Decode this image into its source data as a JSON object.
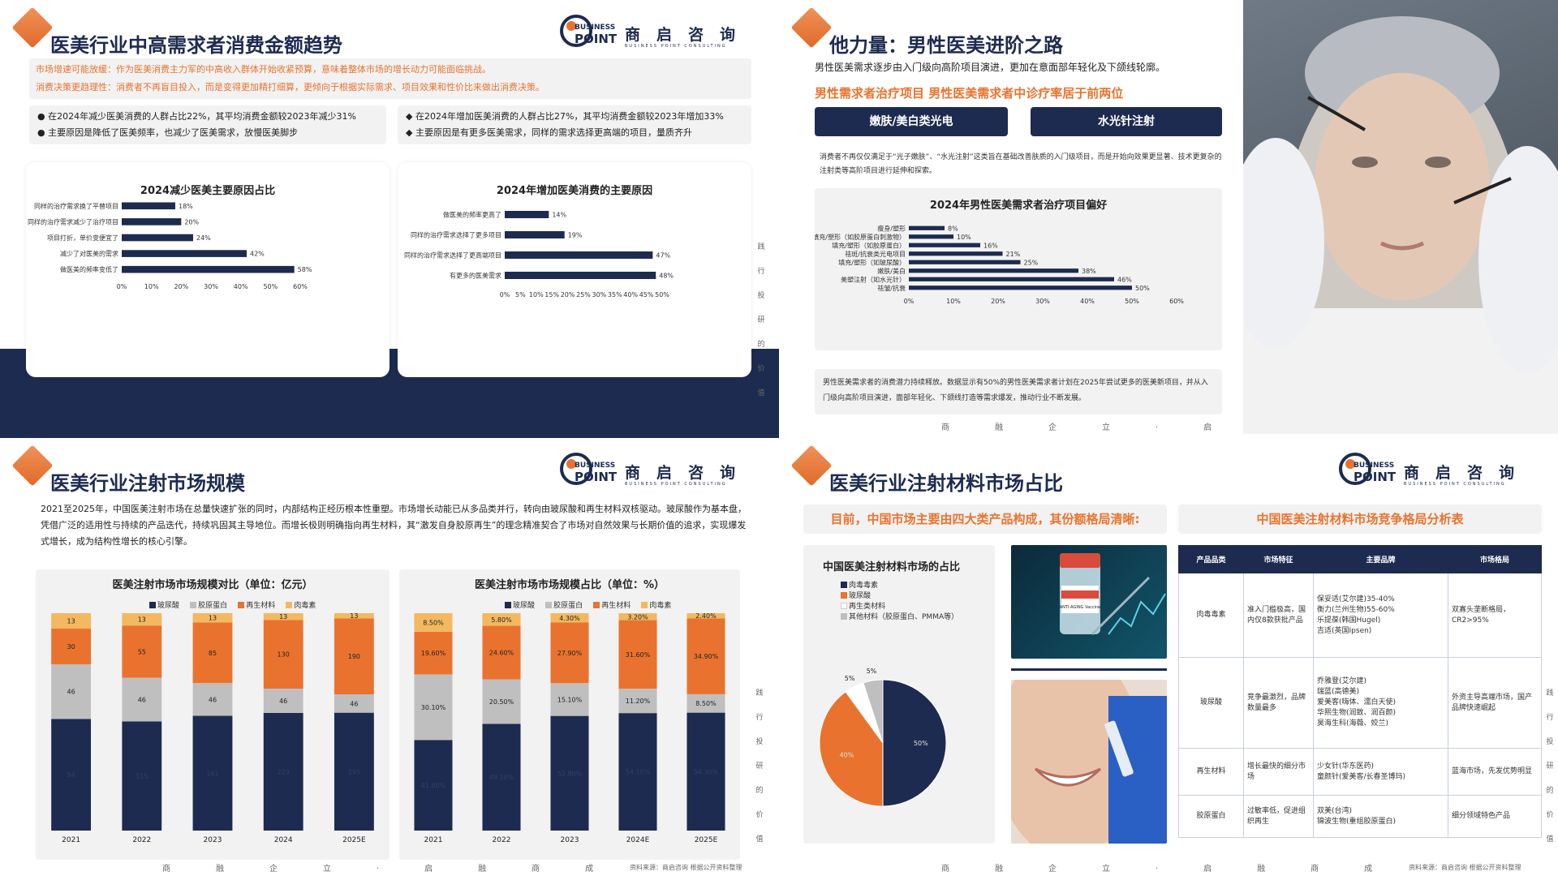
{
  "logo": {
    "en_1": "BUSINESS",
    "en_2": "POINT",
    "cn": "商启咨询",
    "sub": "BUSINESS POINT CONSULTING"
  },
  "footer_chars": "商融企立·启融商成",
  "side_text": [
    "践",
    "行",
    "投",
    "研",
    "的",
    "价",
    "值"
  ],
  "s1": {
    "title": "医美行业中高需求者消费金额趋势",
    "notes": [
      "市场增速可能放缓：作为医美消费主力军的中高收入群体开始收紧预算，意味着整体市场的增长动力可能面临挑战。",
      "消费决策更趋理性：消费者不再盲目投入，而是变得更加精打细算，更倾向于根据实际需求、项目效果和性价比来做出消费决策。"
    ],
    "left_bullets": [
      "在2024年减少医美消费的人群占比22%，其平均消费金额较2023年减少31%",
      "主要原因是降低了医美频率，也减少了医美需求，放慢医美脚步"
    ],
    "right_bullets": [
      "在2024年增加医美消费的人群占比27%，其平均消费金额较2023年增加33%",
      "主要原因是有更多医美需求，同样的需求选择更高端的项目，量质齐升"
    ],
    "bullet_dot": "●",
    "bullet_diamond": "◆"
  },
  "s2": {
    "title": "他力量：男性医美进阶之路",
    "intro": "男性医美需求逐步由入门级向高阶项目演进，更加在意面部年轻化及下颌线轮廓。",
    "highlight": "男性需求者治疗项目 男性医美需求者中诊疗率居于前两位",
    "tags": [
      "嫩肤/美白类光电",
      "水光针注射"
    ],
    "desc": "消费者不再仅仅满足于“光子嫩肤”、“水光注射”这类旨在基础改善肤质的入门级项目，而是开始向效果更显著、技术更复杂的注射类等高阶项目进行延伸和探索。",
    "bottom_note": "男性医美需求者的消费潜力持续释放。数据显示有50%的男性医美需求者计划在2025年尝试更多的医美新项目，并从入门级向高阶项目演进，面部年轻化、下颌线打造等需求爆发，推动行业不断发展。",
    "footer": "商融企立·启"
  },
  "s3": {
    "title": "医美行业注射市场规模",
    "intro": "2021至2025年，中国医美注射市场在总量快速扩张的同时，内部结构正经历根本性重塑。市场增长动能已从多品类并行，转向由玻尿酸和再生材料双核驱动。玻尿酸作为基本盘，凭借广泛的适用性与持续的产品迭代，持续巩固其主导地位。而增长极则明确指向再生材料，其“激发自身胶原再生”的理念精准契合了市场对自然效果与长期价值的追求，实现爆发式增长，成为结构性增长的核心引擎。",
    "source": "资料来源：商启咨询 根据公开资料整理"
  },
  "s4": {
    "title": "医美行业注射材料市场占比",
    "left_head": "目前，中国市场主要由四大类产品构成，其份额格局清晰:",
    "right_head": "中国医美注射材料市场竞争格局分析表",
    "table": {
      "headers": [
        "产品品类",
        "市场特征",
        "主要品牌",
        "市场格局"
      ],
      "rows": [
        [
          "肉毒毒素",
          "准入门槛极高，国内仅8款获批产品",
          "保妥适(艾尔建)35-40%\n衡力(兰州生物)55-60%\n乐提葆(韩国Hugel)\n吉适(英国Ipsen)",
          "双寡头垄断格局，CR2>95%"
        ],
        [
          "玻尿酸",
          "竞争最激烈，品牌数量最多",
          "乔雅登(艾尔建)\n瑞蓝(高德美)\n爱美客(嗨体、濡白天使)\n华熙生物(润致、润百颜)\n昊海生科(海薇、姣兰)",
          "外资主导高端市场，国产品牌快速崛起"
        ],
        [
          "再生材料",
          "增长最快的细分市场",
          "少女针(华东医药)\n童颜针(爱美客/长春圣博玛)",
          "蓝海市场，先发优势明显"
        ],
        [
          "胶原蛋白",
          "过敏率低，促进组织再生",
          "双美(台湾)\n锦波生物(重组胶原蛋白)",
          "细分领域特色产品"
        ]
      ]
    },
    "source": "资料来源：商启咨询 根据公开资料整理",
    "vial_label": "ANTI-AGING Vaccine"
  },
  "chart_data": [
    {
      "id": "reduce",
      "type": "bar",
      "orientation": "horizontal",
      "title": "2024减少医美主要原因占比",
      "categories": [
        "同样的治疗需求换了平替项目",
        "同样的治疗需求减少了治疗项目",
        "项目打折，单价变便宜了",
        "减少了对医美的需求",
        "做医美的频率变低了"
      ],
      "values": [
        18,
        20,
        24,
        42,
        58
      ],
      "value_labels": [
        "18%",
        "20%",
        "24%",
        "42%",
        "58%"
      ],
      "xlim": [
        0,
        60
      ],
      "x_ticks": [
        "0%",
        "10%",
        "20%",
        "30%",
        "40%",
        "50%",
        "60%"
      ],
      "color": "#1d2b50"
    },
    {
      "id": "increase",
      "type": "bar",
      "orientation": "horizontal",
      "title": "2024年增加医美消费的主要原因",
      "categories": [
        "做医美的频率更高了",
        "同样的治疗需求选择了更多项目",
        "同样的治疗需求选择了更高端项目",
        "有更多的医美需求"
      ],
      "values": [
        14,
        19,
        47,
        48
      ],
      "value_labels": [
        "14%",
        "19%",
        "47%",
        "48%"
      ],
      "xlim": [
        0,
        50
      ],
      "x_ticks": [
        "0%",
        "5%",
        "10%",
        "15%",
        "20%",
        "25%",
        "30%",
        "35%",
        "40%",
        "45%",
        "50%"
      ],
      "color": "#1d2b50"
    },
    {
      "id": "male",
      "type": "bar",
      "orientation": "horizontal",
      "title": "2024年男性医美需求者治疗项目偏好",
      "categories": [
        "瘦身/塑形",
        "填充/塑形（如胶原蛋白刺激物）",
        "填充/塑形（如胶原蛋白）",
        "祛斑/抗衰类光电项目",
        "填充/塑形（如玻尿酸）",
        "嫩肤/美白",
        "美塑注射（如水光针）",
        "祛皱/抗衰"
      ],
      "values": [
        8,
        10,
        16,
        21,
        25,
        38,
        46,
        50
      ],
      "value_labels": [
        "8%",
        "10%",
        "16%",
        "21%",
        "25%",
        "38%",
        "46%",
        "50%"
      ],
      "xlim": [
        0,
        60
      ],
      "x_ticks": [
        "0%",
        "10%",
        "20%",
        "30%",
        "40%",
        "50%",
        "60%"
      ],
      "color": "#1d2b50"
    },
    {
      "id": "scale",
      "type": "bar",
      "stacked": true,
      "title": "医美注射市场市场规模对比（单位：亿元）",
      "categories": [
        "2021",
        "2022",
        "2023",
        "2024",
        "2025E"
      ],
      "series": [
        {
          "name": "玻尿酸",
          "values": [
            94,
            115,
            161,
            223,
            295
          ],
          "labels": [
            "94",
            "115",
            "161",
            "223",
            "295"
          ],
          "color": "#1d2b50"
        },
        {
          "name": "胶原蛋白",
          "values": [
            46,
            46,
            46,
            46,
            46
          ],
          "labels": [
            "46",
            "46",
            "46",
            "46",
            "46"
          ],
          "color": "#bfbfbf"
        },
        {
          "name": "再生材料",
          "values": [
            30,
            55,
            85,
            130,
            190
          ],
          "labels": [
            "30",
            "55",
            "85",
            "130",
            "190"
          ],
          "color": "#e9732e"
        },
        {
          "name": "肉毒素",
          "values": [
            13,
            13,
            13,
            13,
            13
          ],
          "labels": [
            "13",
            "13",
            "13",
            "13",
            "13"
          ],
          "color": "#f3b860"
        }
      ]
    },
    {
      "id": "share",
      "type": "bar",
      "stacked": true,
      "title": "医美注射市场市场规模占比（单位：%）",
      "categories": [
        "2021",
        "2022",
        "2023",
        "2024E",
        "2025E"
      ],
      "series": [
        {
          "name": "玻尿酸",
          "values": [
            41.6,
            49.1,
            52.8,
            54.1,
            54.3
          ],
          "labels": [
            "41.60%",
            "49.10%",
            "52.80%",
            "54.10%",
            "54.30%"
          ],
          "color": "#1d2b50"
        },
        {
          "name": "胶原蛋白",
          "values": [
            30.1,
            20.5,
            15.1,
            11.2,
            8.5
          ],
          "labels": [
            "30.10%",
            "20.50%",
            "15.10%",
            "11.20%",
            "8.50%"
          ],
          "color": "#bfbfbf"
        },
        {
          "name": "再生材料",
          "values": [
            19.6,
            24.6,
            27.9,
            31.6,
            34.9
          ],
          "labels": [
            "19.60%",
            "24.60%",
            "27.90%",
            "31.60%",
            "34.90%"
          ],
          "color": "#e9732e"
        },
        {
          "name": "肉毒素",
          "values": [
            8.5,
            5.8,
            4.3,
            3.2,
            2.4
          ],
          "labels": [
            "8.50%",
            "5.80%",
            "4.30%",
            "3.20%",
            "2.40%"
          ],
          "color": "#f3b860"
        }
      ]
    },
    {
      "id": "pie",
      "type": "pie",
      "title": "中国医美注射材料市场的占比",
      "slices": [
        {
          "name": "肉毒毒素",
          "value": 50,
          "label": "50%",
          "color": "#1d2b50"
        },
        {
          "name": "玻尿酸",
          "value": 40,
          "label": "40%",
          "color": "#e9732e"
        },
        {
          "name": "再生类材料",
          "value": 5,
          "label": "5%",
          "color": "#ffffff"
        },
        {
          "name": "其他材料（胶原蛋白、PMMA等）",
          "value": 5,
          "label": "5%",
          "color": "#bfbfbf"
        }
      ]
    }
  ]
}
